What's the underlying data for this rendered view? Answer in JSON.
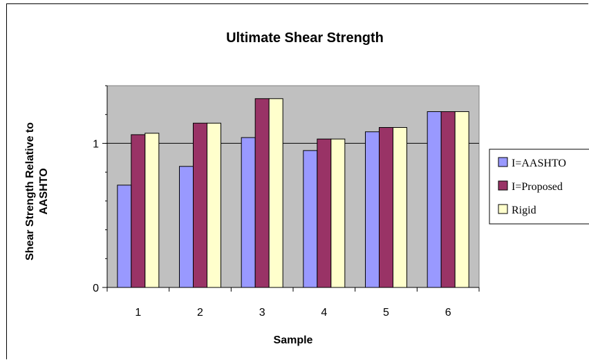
{
  "chart_data": {
    "type": "bar",
    "title": "Ultimate Shear Strength",
    "xlabel": "Sample",
    "ylabel": [
      "Shear Strength Relative to",
      "AASHTO"
    ],
    "categories": [
      "1",
      "2",
      "3",
      "4",
      "5",
      "6"
    ],
    "yticks": [
      "0",
      "1"
    ],
    "ylim": [
      0,
      1.4
    ],
    "grid": true,
    "legend_position": "right",
    "series": [
      {
        "name": "I=AASHTO",
        "color": "#9999ff",
        "values": [
          0.71,
          0.84,
          1.04,
          0.95,
          1.08,
          1.22
        ]
      },
      {
        "name": "I=Proposed",
        "color": "#993366",
        "values": [
          1.06,
          1.14,
          1.31,
          1.03,
          1.11,
          1.22
        ]
      },
      {
        "name": "Rigid",
        "color": "#ffffcc",
        "values": [
          1.07,
          1.14,
          1.31,
          1.03,
          1.11,
          1.22
        ]
      }
    ],
    "plot_background": "#c0c0c0"
  }
}
